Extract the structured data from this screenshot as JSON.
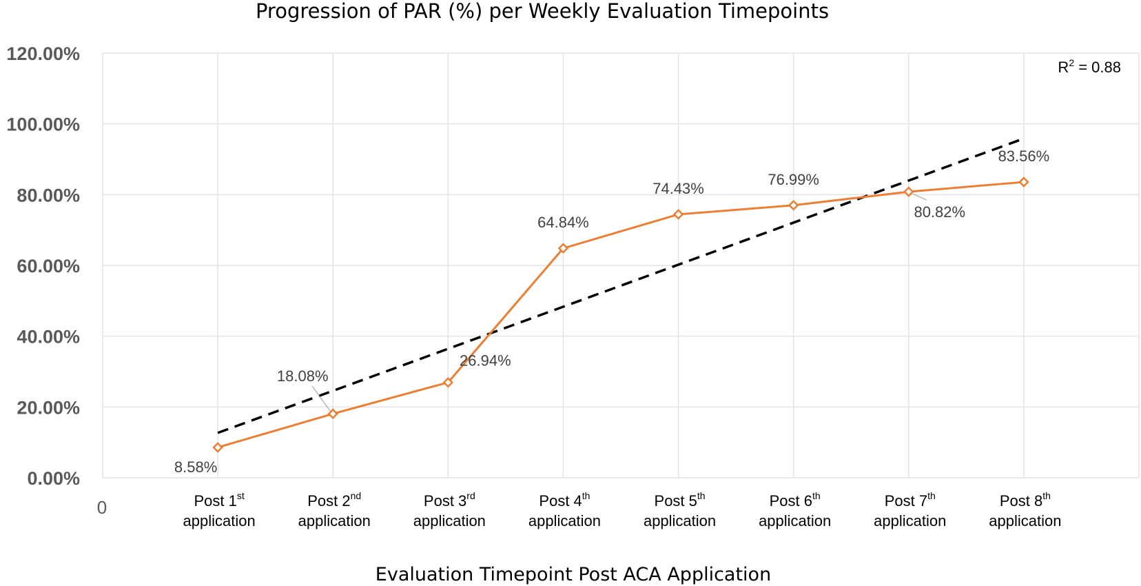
{
  "chart_data": {
    "type": "line",
    "title": "Progression of PAR (%) per Weekly Evaluation Timepoints",
    "xlabel": "Evaluation Timepoint Post ACA Application",
    "ylabel": "",
    "x_origin_label": "0",
    "categories": [
      {
        "main": "Post 1",
        "sup": "st",
        "line2": "application"
      },
      {
        "main": "Post 2",
        "sup": "nd",
        "line2": "application"
      },
      {
        "main": "Post 3",
        "sup": "rd",
        "line2": "application"
      },
      {
        "main": "Post 4",
        "sup": "th",
        "line2": "application"
      },
      {
        "main": "Post 5",
        "sup": "th",
        "line2": "application"
      },
      {
        "main": "Post 6",
        "sup": "th",
        "line2": "application"
      },
      {
        "main": "Post 7",
        "sup": "th",
        "line2": "application"
      },
      {
        "main": "Post 8",
        "sup": "th",
        "line2": "application"
      }
    ],
    "x_positions": [
      1,
      2,
      3,
      4,
      5,
      6,
      7,
      8
    ],
    "x_range": [
      0,
      9
    ],
    "series": [
      {
        "name": "PAR (%)",
        "color": "#ED7D31",
        "marker": "diamond",
        "values": [
          8.58,
          18.08,
          26.94,
          64.84,
          74.43,
          76.99,
          80.82,
          83.56
        ],
        "labels": [
          "8.58%",
          "18.08%",
          "26.94%",
          "64.84%",
          "74.43%",
          "76.99%",
          "80.82%",
          "83.56%"
        ],
        "label_positions": [
          "below-left",
          "above-left",
          "above-right",
          "above",
          "above",
          "above",
          "below-right",
          "above"
        ]
      }
    ],
    "trendline": {
      "type": "linear",
      "color": "#000000",
      "style": "dashed",
      "slope": 11.88,
      "intercept": 0.81,
      "x_range": [
        1,
        8
      ],
      "r_squared_label": {
        "prefix": "R",
        "sup": "2",
        "suffix": " = 0.88"
      }
    },
    "ylim": [
      0,
      120
    ],
    "yticks": [
      0,
      20,
      40,
      60,
      80,
      100,
      120
    ],
    "ytick_labels": [
      "0.00%",
      "20.00%",
      "40.00%",
      "60.00%",
      "80.00%",
      "100.00%",
      "120.00%"
    ],
    "grid": true,
    "legend": "none"
  }
}
